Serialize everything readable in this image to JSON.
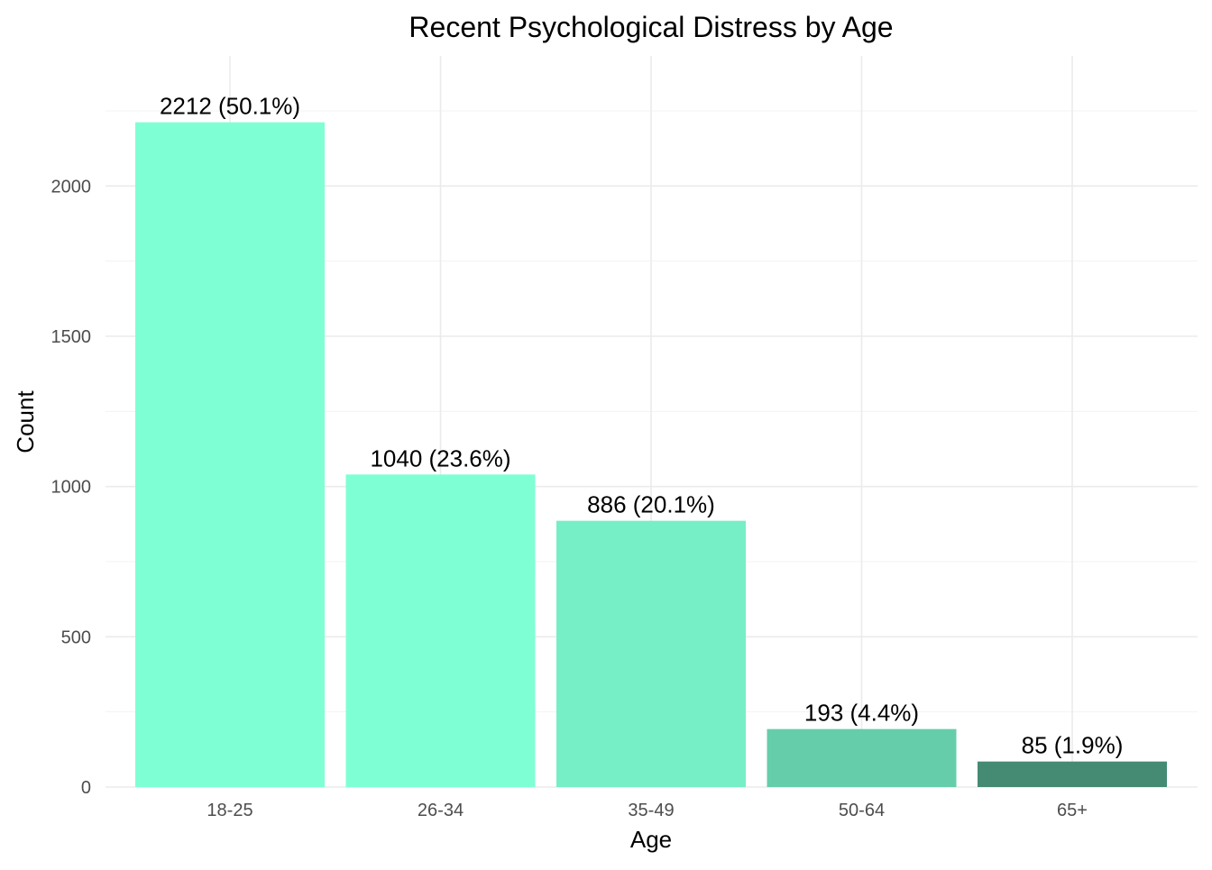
{
  "chart_data": {
    "type": "bar",
    "title": "Recent Psychological Distress by Age",
    "xlabel": "Age",
    "ylabel": "Count",
    "categories": [
      "18-25",
      "26-34",
      "35-49",
      "50-64",
      "65+"
    ],
    "values": [
      2212,
      1040,
      886,
      193,
      85
    ],
    "labels": [
      "2212 (50.1%)",
      "1040 (23.6%)",
      "886 (20.1%)",
      "193 (4.4%)",
      "85 (1.9%)"
    ],
    "colors": [
      "#7fffd4",
      "#7fffd4",
      "#76eec6",
      "#66cdaa",
      "#458b74"
    ],
    "ylim": [
      0,
      2322.6
    ],
    "yticks": [
      0,
      500,
      1000,
      1500,
      2000
    ],
    "grid": true,
    "legend": "none"
  }
}
